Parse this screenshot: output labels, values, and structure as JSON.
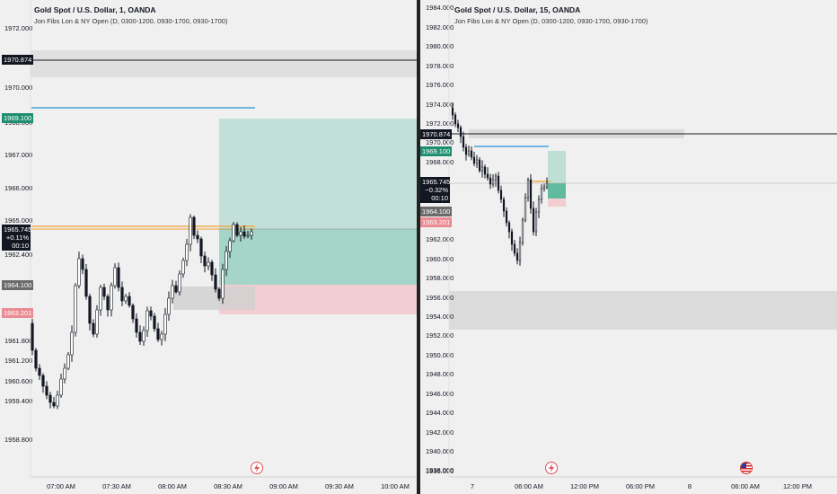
{
  "colors": {
    "background": "#f0f0f0",
    "bull_candle": "#ffffff",
    "bear_candle": "#131722",
    "target_zone": "#9fd3c5",
    "stop_zone": "#f2cdd2",
    "blue_level": "#2a8fd6",
    "orange_level": "#f0a030",
    "grey_zone": "#d2d2d2"
  },
  "left_chart": {
    "title": "Gold Spot / U.S. Dollar, 1, OANDA",
    "study": "Jon Fibs Lon & NY Open (D, 0300-1200, 0930-1700, 0930-1700)",
    "price_ticks": [
      "1972.000",
      "1970.000",
      "1968.000",
      "1967.000",
      "1966.000",
      "1965.000",
      "1962.400",
      "1961.800",
      "1961.200",
      "1960.600",
      "1959.400",
      "1958.800"
    ],
    "time_ticks": [
      "07:00 AM",
      "07:30 AM",
      "08:00 AM",
      "08:30 AM",
      "09:00 AM",
      "09:30 AM",
      "10:00 AM"
    ],
    "badges": {
      "level_high": "1970.874",
      "blue_level": "1969.100",
      "current_price": "1965.745",
      "current_change": "+0.11%",
      "countdown": "00:10",
      "grey_level": "1964.100",
      "red_level": "1963.201"
    },
    "icons": [
      "lightning-icon"
    ]
  },
  "right_chart": {
    "title": "Gold Spot / U.S. Dollar, 15, OANDA",
    "study": "Jon Fibs Lon & NY Open (D, 0300-1200, 0930-1700, 0930-1700)",
    "price_ticks": [
      "1984.000",
      "1982.000",
      "1980.000",
      "1978.000",
      "1976.000",
      "1974.000",
      "1972.000",
      "1970.000",
      "1968.000",
      "1962.000",
      "1960.000",
      "1958.000",
      "1956.000",
      "1954.000",
      "1952.000",
      "1950.000",
      "1948.000",
      "1946.000",
      "1944.000",
      "1942.000",
      "1940.000",
      "1938.000",
      "1936.000"
    ],
    "time_ticks": [
      "7",
      "06:00 AM",
      "12:00 PM",
      "06:00 PM",
      "8",
      "06:00 AM",
      "12:00 PM"
    ],
    "badges": {
      "level_high": "1970.874",
      "blue_level": "1969.100",
      "current_price": "1965.745",
      "current_change": "−0.32%",
      "countdown": "00:10",
      "grey_level": "1964.100",
      "red_level": "1963.201"
    },
    "icons": [
      "lightning-icon",
      "us-flag-icon"
    ]
  }
}
